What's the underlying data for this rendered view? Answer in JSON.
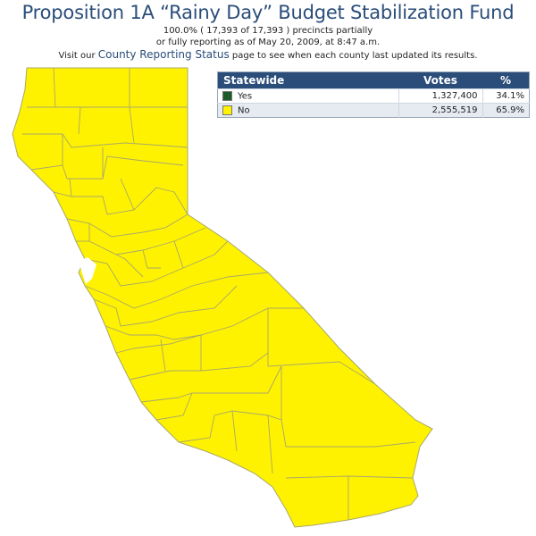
{
  "header": {
    "title": "Proposition 1A “Rainy Day” Budget Stabilization Fund",
    "line1": "100.0% ( 17,393 of 17,393 ) precincts partially",
    "line2": "or fully reporting as of May 20, 2009, at 8:47 a.m.",
    "line3_pre": "Visit our ",
    "line3_link": "County Reporting Status",
    "line3_post": " page to see when each county last updated its results."
  },
  "table": {
    "col_region": "Statewide",
    "col_votes": "Votes",
    "col_pct": "%",
    "rows": [
      {
        "label": "Yes",
        "votes": "1,327,400",
        "pct": "34.1%",
        "color": "#1e5a2a"
      },
      {
        "label": "No",
        "votes": "2,555,519",
        "pct": "65.9%",
        "color": "#fff200"
      }
    ]
  },
  "map": {
    "fill_color": "#fff200",
    "border_color": "#a8a86a"
  }
}
